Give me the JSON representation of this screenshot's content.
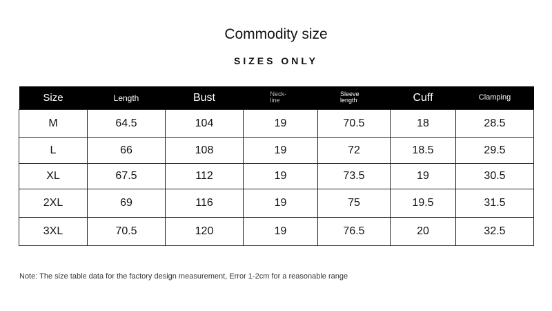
{
  "header": {
    "title": "Commodity size",
    "subtitle": "SIZES ONLY"
  },
  "table": {
    "columns": [
      "Size",
      "Length",
      "Bust",
      "Neck-line",
      "Sleeve length",
      "Cuff",
      "Clamping"
    ],
    "rows": [
      [
        "M",
        64.5,
        104,
        19,
        70.5,
        18,
        28.5
      ],
      [
        "L",
        66,
        108,
        19,
        72,
        18.5,
        29.5
      ],
      [
        "XL",
        67.5,
        112,
        19,
        73.5,
        19,
        30.5
      ],
      [
        "2XL",
        69,
        116,
        19,
        75,
        19.5,
        31.5
      ],
      [
        "3XL",
        70.5,
        120,
        19,
        76.5,
        20,
        32.5
      ]
    ]
  },
  "note": "Note: The size table data for the factory design measurement, Error 1-2cm for a reasonable range"
}
